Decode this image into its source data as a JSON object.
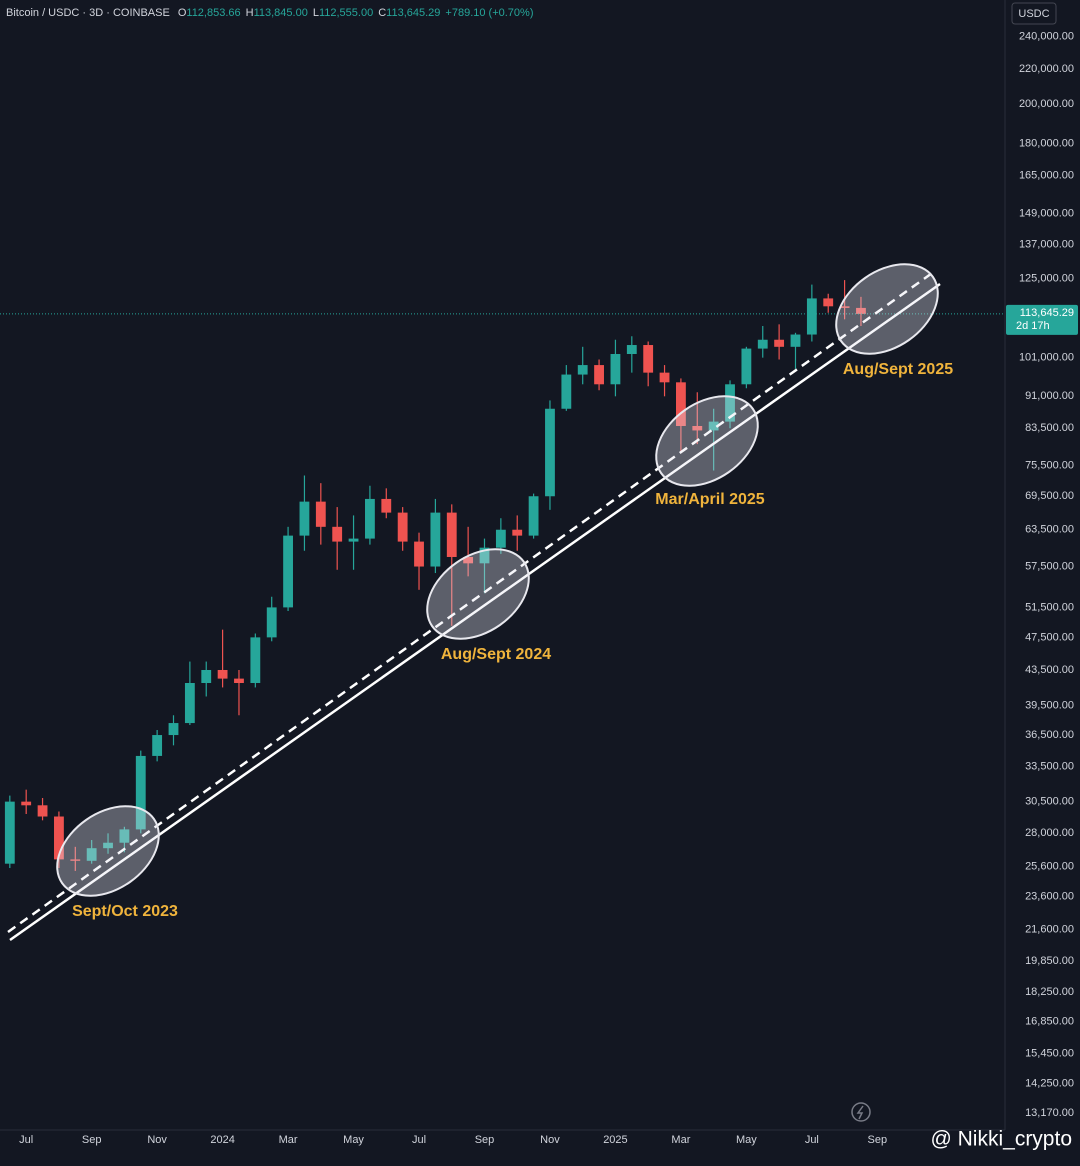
{
  "chart_data": {
    "type": "candlestick",
    "title": "Bitcoin / USDC · 3D · COINBASE",
    "ohlc_labels": [
      {
        "key": "O",
        "value": "112,853.66"
      },
      {
        "key": "H",
        "value": "113,845.00"
      },
      {
        "key": "L",
        "value": "112,555.00"
      },
      {
        "key": "C",
        "value": "113,645.29"
      }
    ],
    "change": "+789.10 (+0.70%)",
    "currency": "USDC",
    "last_price": {
      "value": 113645.29,
      "label": "113,645.29"
    },
    "countdown": "2d 17h",
    "up_color": "#26a69a",
    "down_color": "#ef5350",
    "log_scale": true,
    "grid": false,
    "x": [
      -0.5,
      0,
      0.5,
      1,
      1.5,
      2,
      2.5,
      3,
      3.5,
      4,
      4.5,
      5,
      5.5,
      6,
      6.5,
      7,
      7.5,
      8,
      8.5,
      9,
      9.5,
      10,
      10.5,
      11,
      11.5,
      12,
      12.5,
      13,
      13.5,
      14,
      14.5,
      15,
      15.5,
      16,
      16.5,
      17,
      17.5,
      18,
      18.5,
      19,
      19.5,
      20,
      20.5,
      21,
      21.5,
      22,
      22.5,
      23,
      23.5,
      24,
      24.5,
      25,
      25.5
    ],
    "open": [
      25800,
      30500,
      30200,
      29300,
      26100,
      26000,
      26900,
      27300,
      28300,
      34500,
      36500,
      37700,
      42000,
      43500,
      42500,
      42000,
      47500,
      51500,
      62500,
      68500,
      64000,
      61500,
      62000,
      69000,
      66500,
      61500,
      57500,
      66500,
      59000,
      58000,
      60500,
      63500,
      62500,
      69500,
      88000,
      96500,
      99000,
      94000,
      102000,
      104500,
      97000,
      94500,
      84000,
      83000,
      85000,
      94000,
      103500,
      106000,
      104000,
      107500,
      118500,
      116000,
      115500
    ],
    "high": [
      31000,
      31500,
      30800,
      29700,
      27000,
      27500,
      28000,
      28500,
      35000,
      37000,
      38500,
      44500,
      44500,
      48500,
      43500,
      48000,
      53000,
      64000,
      73500,
      72000,
      67500,
      66000,
      71500,
      71000,
      67500,
      63000,
      69000,
      68000,
      64000,
      62000,
      65500,
      66000,
      70000,
      90000,
      99000,
      104000,
      100500,
      106000,
      107000,
      105500,
      99000,
      95500,
      92000,
      88000,
      95000,
      104000,
      110000,
      110500,
      108000,
      123000,
      120000,
      124500,
      119000
    ],
    "low": [
      25500,
      29500,
      29000,
      25500,
      25300,
      25800,
      26500,
      26600,
      28000,
      34000,
      35500,
      37500,
      40500,
      41500,
      38500,
      41500,
      47000,
      51000,
      60000,
      61000,
      57000,
      57000,
      61000,
      65500,
      60000,
      54000,
      56500,
      49000,
      56000,
      53500,
      59500,
      60000,
      62000,
      67000,
      87500,
      94000,
      92500,
      91000,
      97000,
      93500,
      91000,
      78000,
      80000,
      74500,
      83500,
      93000,
      101000,
      100500,
      98000,
      105500,
      114000,
      112000,
      110000
    ],
    "close": [
      30500,
      30200,
      29300,
      26100,
      26000,
      26900,
      27300,
      28300,
      34500,
      36500,
      37700,
      42000,
      43500,
      42500,
      42000,
      47500,
      51500,
      62500,
      68500,
      64000,
      61500,
      62000,
      69000,
      66500,
      61500,
      57500,
      66500,
      59000,
      58000,
      60500,
      63500,
      62500,
      69500,
      88000,
      96500,
      99000,
      94000,
      102000,
      104500,
      97000,
      94500,
      84000,
      83000,
      85000,
      94000,
      103500,
      106000,
      104000,
      107500,
      118500,
      116000,
      115500,
      113645.29
    ],
    "xlim": [
      -0.8,
      29.9
    ],
    "xticks": [
      {
        "value": 0,
        "label": "Jul"
      },
      {
        "value": 2,
        "label": "Sep"
      },
      {
        "value": 4,
        "label": "Nov"
      },
      {
        "value": 6,
        "label": "2024"
      },
      {
        "value": 8,
        "label": "Mar"
      },
      {
        "value": 10,
        "label": "May"
      },
      {
        "value": 12,
        "label": "Jul"
      },
      {
        "value": 14,
        "label": "Sep"
      },
      {
        "value": 16,
        "label": "Nov"
      },
      {
        "value": 18,
        "label": "2025"
      },
      {
        "value": 20,
        "label": "Mar"
      },
      {
        "value": 22,
        "label": "May"
      },
      {
        "value": 24,
        "label": "Jul"
      },
      {
        "value": 26,
        "label": "Sep"
      }
    ],
    "ylim": [
      12580,
      265000
    ],
    "yticks": [
      {
        "value": 240000,
        "label": "240,000.00"
      },
      {
        "value": 220000,
        "label": "220,000.00"
      },
      {
        "value": 200000,
        "label": "200,000.00"
      },
      {
        "value": 180000,
        "label": "180,000.00"
      },
      {
        "value": 165000,
        "label": "165,000.00"
      },
      {
        "value": 149000,
        "label": "149,000.00"
      },
      {
        "value": 137000,
        "label": "137,000.00"
      },
      {
        "value": 125000,
        "label": "125,000.00"
      },
      {
        "value": 101000,
        "label": "101,000.00"
      },
      {
        "value": 91000,
        "label": "91,000.00"
      },
      {
        "value": 83500,
        "label": "83,500.00"
      },
      {
        "value": 75500,
        "label": "75,500.00"
      },
      {
        "value": 69500,
        "label": "69,500.00"
      },
      {
        "value": 63500,
        "label": "63,500.00"
      },
      {
        "value": 57500,
        "label": "57,500.00"
      },
      {
        "value": 51500,
        "label": "51,500.00"
      },
      {
        "value": 47500,
        "label": "47,500.00"
      },
      {
        "value": 43500,
        "label": "43,500.00"
      },
      {
        "value": 39500,
        "label": "39,500.00"
      },
      {
        "value": 36500,
        "label": "36,500.00"
      },
      {
        "value": 33500,
        "label": "33,500.00"
      },
      {
        "value": 30500,
        "label": "30,500.00"
      },
      {
        "value": 28000,
        "label": "28,000.00"
      },
      {
        "value": 25600,
        "label": "25,600.00"
      },
      {
        "value": 23600,
        "label": "23,600.00"
      },
      {
        "value": 21600,
        "label": "21,600.00"
      },
      {
        "value": 19850,
        "label": "19,850.00"
      },
      {
        "value": 18250,
        "label": "18,250.00"
      },
      {
        "value": 16850,
        "label": "16,850.00"
      },
      {
        "value": 15450,
        "label": "15,450.00"
      },
      {
        "value": 14250,
        "label": "14,250.00"
      },
      {
        "value": 13170,
        "label": "13,170.00"
      }
    ],
    "annotations": [
      "Sept/Oct 2023",
      "Aug/Sept 2024",
      "Mar/April 2025",
      "Aug/Sept 2025"
    ],
    "watermark": "@ Nikki_crypto"
  }
}
